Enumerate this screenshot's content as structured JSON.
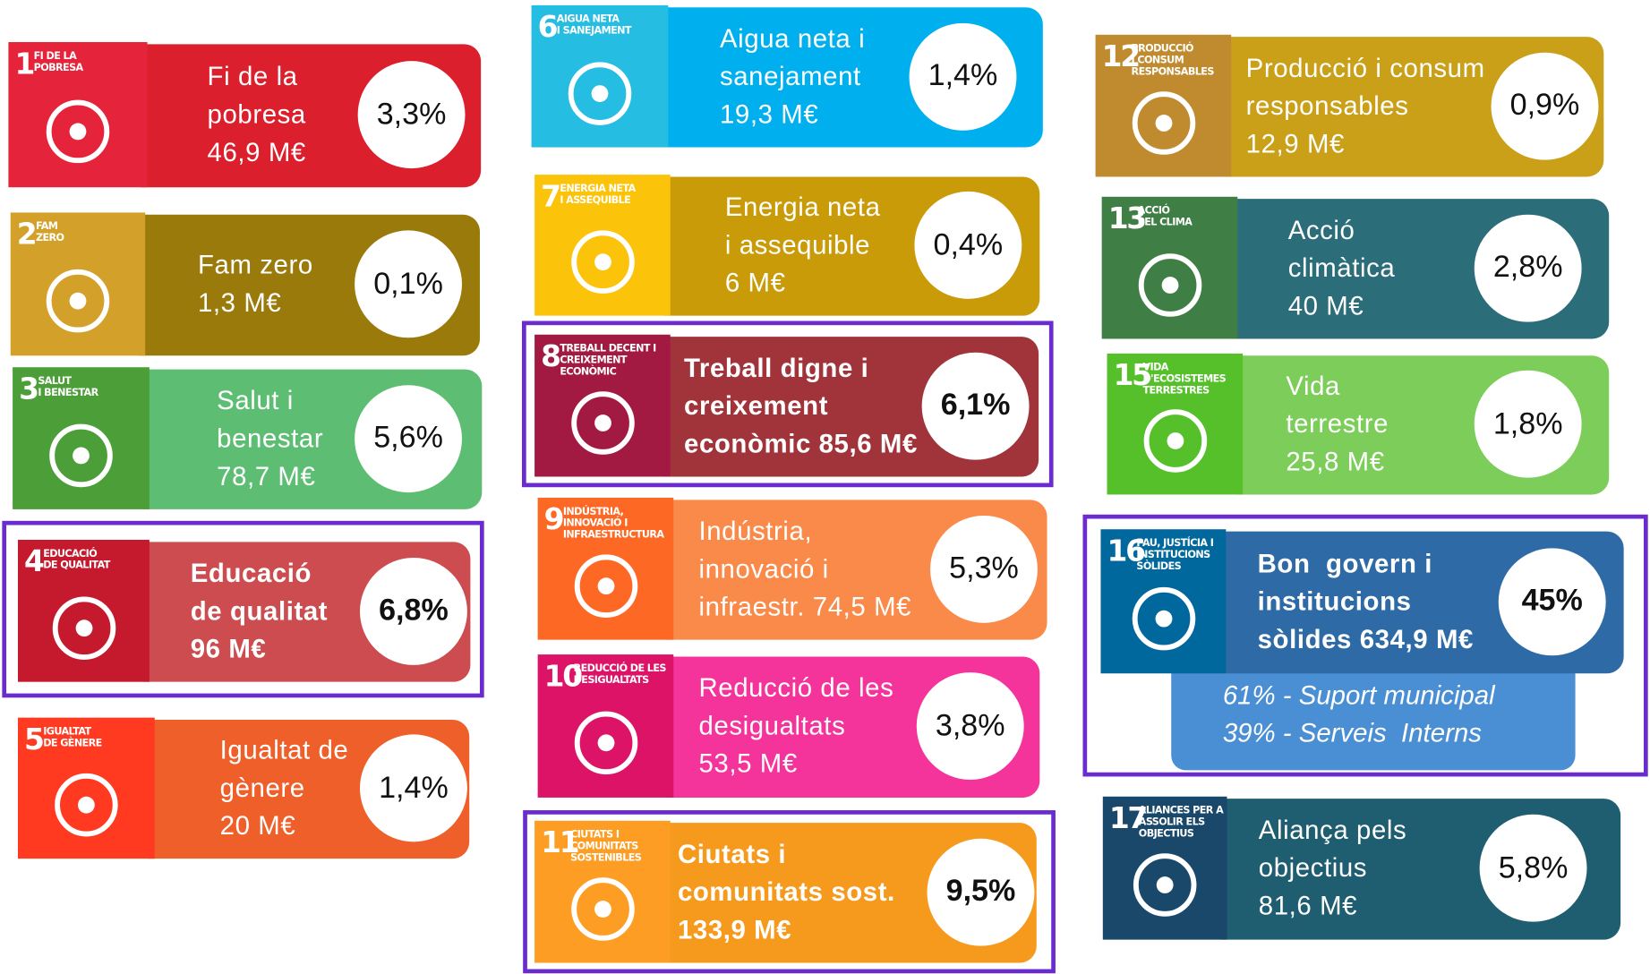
{
  "cards": [
    {
      "number": "1",
      "icon_label": [
        "FI DE LA",
        "POBRESA"
      ],
      "lines": [
        "Fi de la",
        "pobresa",
        "46,9 M€"
      ],
      "percent": "3,3%",
      "icon_color": "#e5243b",
      "color": "#dc1f2c"
    },
    {
      "number": "2",
      "icon_label": [
        "FAM",
        "ZERO"
      ],
      "lines": [
        "Fam zero",
        "1,3 M€"
      ],
      "percent": "0,1%",
      "icon_color": "#d3a029",
      "color": "#9b7a0c"
    },
    {
      "number": "3",
      "icon_label": [
        "SALUT",
        "I BENESTAR"
      ],
      "lines": [
        "Salut i",
        "benestar",
        "78,7 M€"
      ],
      "percent": "5,6%",
      "icon_color": "#4c9f38",
      "color": "#5dbe73"
    },
    {
      "number": "4",
      "icon_label": [
        "EDUCACIÓ",
        "DE QUALITAT"
      ],
      "lines": [
        "Educació",
        "de qualitat",
        "96 M€"
      ],
      "percent": "6,8%",
      "icon_color": "#c5192d",
      "color": "#cc4c4f",
      "highlighted": true
    },
    {
      "number": "5",
      "icon_label": [
        "IGUALTAT",
        "DE GÈNERE"
      ],
      "lines": [
        "Igualtat de",
        "gènere",
        "20 M€"
      ],
      "percent": "1,4%",
      "icon_color": "#ff3a21",
      "color": "#ef5f2a"
    },
    {
      "number": "6",
      "icon_label": [
        "AIGUA NETA",
        "I SANEJAMENT"
      ],
      "lines": [
        "Aigua neta i",
        "sanejament",
        "19,3 M€"
      ],
      "percent": "1,4%",
      "icon_color": "#26bde2",
      "color": "#00b0ee"
    },
    {
      "number": "7",
      "icon_label": [
        "ENERGIA NETA",
        "I ASSEQUIBLE"
      ],
      "lines": [
        "Energia neta",
        "i assequible",
        "6 M€"
      ],
      "percent": "0,4%",
      "icon_color": "#fcc30b",
      "color": "#c99b08"
    },
    {
      "number": "8",
      "icon_label": [
        "TREBALL DECENT I",
        "CREIXEMENT",
        "ECONÒMIC"
      ],
      "lines": [
        "Treball digne i",
        "creixement",
        "econòmic 85,6 M€"
      ],
      "percent": "6,1%",
      "icon_color": "#a21942",
      "color": "#a0343a",
      "highlighted": true
    },
    {
      "number": "9",
      "icon_label": [
        "INDÚSTRIA,",
        "INNOVACIÓ I",
        "INFRAESTRUCTURA"
      ],
      "lines": [
        "Indústria,",
        "innovació i",
        "infraestr. 74,5 M€"
      ],
      "percent": "5,3%",
      "icon_color": "#fd6925",
      "color": "#f98a4a"
    },
    {
      "number": "10",
      "icon_label": [
        "REDUCCIÓ DE LES",
        "DESIGUALTATS"
      ],
      "lines": [
        "Reducció de les",
        "desigualtats",
        "53,5 M€"
      ],
      "percent": "3,8%",
      "icon_color": "#dd1367",
      "color": "#f4339b"
    },
    {
      "number": "11",
      "icon_label": [
        "CIUTATS I",
        "COMUNITATS",
        "SOSTENIBLES"
      ],
      "lines": [
        "Ciutats i",
        "comunitats sost.",
        "133,9 M€"
      ],
      "percent": "9,5%",
      "icon_color": "#fd9d24",
      "color": "#f59a1c",
      "highlighted": true
    },
    {
      "number": "12",
      "icon_label": [
        "PRODUCCIÓ",
        "I CONSUM",
        "RESPONSABLES"
      ],
      "lines": [
        "Producció i consum",
        "responsables",
        "12,9 M€"
      ],
      "percent": "0,9%",
      "icon_color": "#bf8b2e",
      "color": "#c9a018"
    },
    {
      "number": "13",
      "icon_label": [
        "ACCIÓ",
        "PEL CLIMA"
      ],
      "lines": [
        "Acció",
        "climàtica",
        "40 M€"
      ],
      "percent": "2,8%",
      "icon_color": "#3f7e44",
      "color": "#2c6d7a"
    },
    {
      "number": "15",
      "icon_label": [
        "VIDA",
        "D'ECOSISTEMES",
        "TERRESTRES"
      ],
      "lines": [
        "Vida",
        "terrestre",
        "25,8 M€"
      ],
      "percent": "1,8%",
      "icon_color": "#56c02b",
      "color": "#7ccd59"
    },
    {
      "number": "16",
      "icon_label": [
        "PAU, JUSTÍCIA I",
        "INSTITUCIONS",
        "SÒLIDES"
      ],
      "lines": [
        "Bon  govern i",
        "institucions",
        "sòlides 634,9 M€"
      ],
      "percent": "45%",
      "icon_color": "#00689d",
      "color": "#2e6ba6",
      "highlighted": true,
      "notes": [
        "61% - Suport municipal",
        "39% - Serveis  Interns"
      ],
      "notes_color": "#4a8fd4"
    },
    {
      "number": "17",
      "icon_label": [
        "ALIANCES PER A",
        "ASSOLIR ELS",
        "OBJECTIUS"
      ],
      "lines": [
        "Aliança pels",
        "objectius",
        "81,6 M€"
      ],
      "percent": "5,8%",
      "icon_color": "#19486a",
      "color": "#1f5e70"
    }
  ]
}
